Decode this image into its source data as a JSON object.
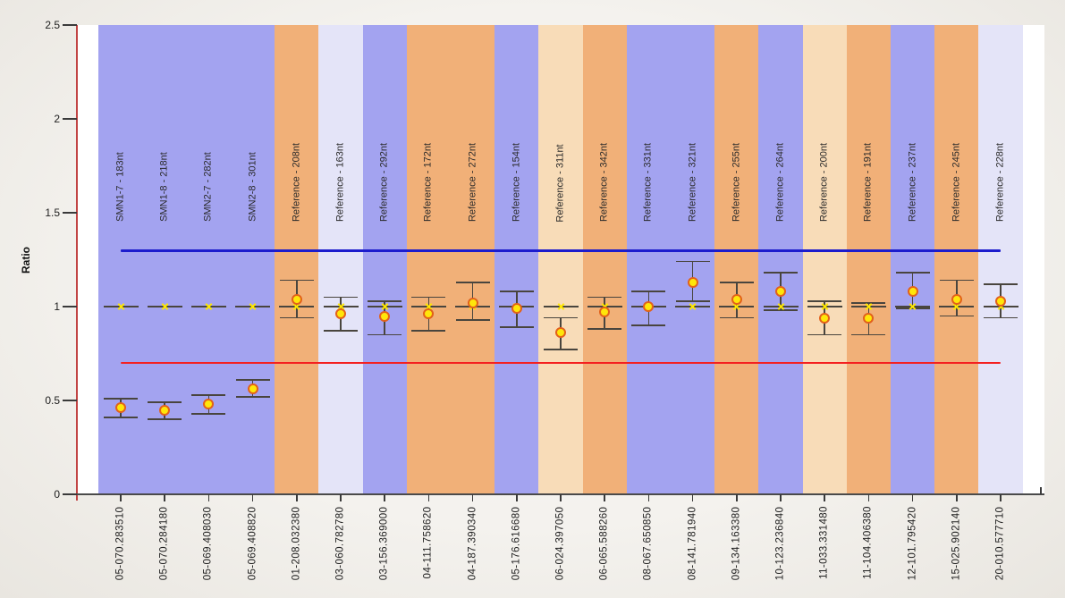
{
  "chart_data": {
    "type": "scatter",
    "title": "",
    "xlabel": "",
    "ylabel": "Ratio",
    "ylim": [
      0,
      2.5
    ],
    "ytick_values": [
      0,
      0.5,
      1,
      1.5,
      2,
      2.5
    ],
    "ytick_labels": [
      "0",
      "0.5",
      "1",
      "1.5",
      "2",
      "2.5"
    ],
    "grid": false,
    "legend_position": "none",
    "reference_lines": {
      "upper": {
        "value": 1.3,
        "color": "#1c1ccd"
      },
      "lower": {
        "value": 0.7,
        "color": "#f42020"
      }
    },
    "expected_ratio_marker": {
      "value": 1.0,
      "symbol": "x",
      "color": "#ffe800"
    },
    "point_style": {
      "fill": "#ffe60a",
      "stroke": "#e2611a"
    },
    "whisker_color": "#49453e",
    "band_palette": {
      "blue": "#a3a3f0",
      "orange": "#f1b078",
      "lavender": "#e4e4f8",
      "peach": "#f8dcb8"
    },
    "columns": [
      {
        "sample": "05-070.283510",
        "probe": "SMN1-7 - 183nt",
        "band": "blue",
        "ratio": 0.46,
        "ci_low": 0.41,
        "ci_high": 0.51
      },
      {
        "sample": "05-070.284180",
        "probe": "SMN1-8 - 218nt",
        "band": "blue",
        "ratio": 0.45,
        "ci_low": 0.4,
        "ci_high": 0.49
      },
      {
        "sample": "05-069.408030",
        "probe": "SMN2-7 - 282nt",
        "band": "blue",
        "ratio": 0.48,
        "ci_low": 0.43,
        "ci_high": 0.53
      },
      {
        "sample": "05-069.408820",
        "probe": "SMN2-8 - 301nt",
        "band": "blue",
        "ratio": 0.56,
        "ci_low": 0.52,
        "ci_high": 0.61
      },
      {
        "sample": "01-208.032380",
        "probe": "Reference - 208nt",
        "band": "orange",
        "ratio": 1.04,
        "ci_low": 0.94,
        "ci_high": 1.14
      },
      {
        "sample": "03-060.782780",
        "probe": "Reference - 163nt",
        "band": "lavender",
        "ratio": 0.96,
        "ci_low": 0.87,
        "ci_high": 1.05
      },
      {
        "sample": "03-156.369000",
        "probe": "Reference - 292nt",
        "band": "blue",
        "ratio": 0.95,
        "ci_low": 0.85,
        "ci_high": 1.03
      },
      {
        "sample": "04-111.758620",
        "probe": "Reference - 172nt",
        "band": "orange",
        "ratio": 0.96,
        "ci_low": 0.87,
        "ci_high": 1.05
      },
      {
        "sample": "04-187.390340",
        "probe": "Reference - 272nt",
        "band": "orange",
        "ratio": 1.02,
        "ci_low": 0.93,
        "ci_high": 1.13
      },
      {
        "sample": "05-176.616680",
        "probe": "Reference - 154nt",
        "band": "blue",
        "ratio": 0.99,
        "ci_low": 0.89,
        "ci_high": 1.08
      },
      {
        "sample": "06-024.397050",
        "probe": "Reference - 311nt",
        "band": "peach",
        "ratio": 0.86,
        "ci_low": 0.77,
        "ci_high": 0.94
      },
      {
        "sample": "06-065.588260",
        "probe": "Reference - 342nt",
        "band": "orange",
        "ratio": 0.97,
        "ci_low": 0.88,
        "ci_high": 1.05
      },
      {
        "sample": "08-067.650850",
        "probe": "Reference - 331nt",
        "band": "blue",
        "ratio": 1.0,
        "ci_low": 0.9,
        "ci_high": 1.08
      },
      {
        "sample": "08-141.781940",
        "probe": "Reference - 321nt",
        "band": "blue",
        "ratio": 1.13,
        "ci_low": 1.03,
        "ci_high": 1.24
      },
      {
        "sample": "09-134.163380",
        "probe": "Reference - 255nt",
        "band": "orange",
        "ratio": 1.04,
        "ci_low": 0.94,
        "ci_high": 1.13
      },
      {
        "sample": "10-123.236840",
        "probe": "Reference - 264nt",
        "band": "blue",
        "ratio": 1.08,
        "ci_low": 0.98,
        "ci_high": 1.18
      },
      {
        "sample": "11-033.331480",
        "probe": "Reference - 200nt",
        "band": "peach",
        "ratio": 0.94,
        "ci_low": 0.85,
        "ci_high": 1.03
      },
      {
        "sample": "11-104.406380",
        "probe": "Reference - 191nt",
        "band": "orange",
        "ratio": 0.94,
        "ci_low": 0.85,
        "ci_high": 1.02
      },
      {
        "sample": "12-101.795420",
        "probe": "Reference - 237nt",
        "band": "blue",
        "ratio": 1.08,
        "ci_low": 0.99,
        "ci_high": 1.18
      },
      {
        "sample": "15-025.902140",
        "probe": "Reference - 245nt",
        "band": "orange",
        "ratio": 1.04,
        "ci_low": 0.95,
        "ci_high": 1.14
      },
      {
        "sample": "20-010.577710",
        "probe": "Reference - 228nt",
        "band": "lavender",
        "ratio": 1.03,
        "ci_low": 0.94,
        "ci_high": 1.12
      }
    ]
  }
}
